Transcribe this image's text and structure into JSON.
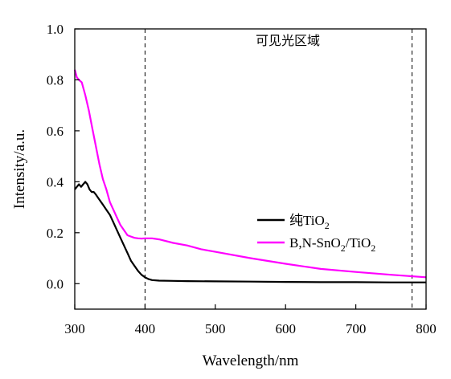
{
  "chart_data": {
    "type": "line",
    "xlabel": "Wavelength/nm",
    "ylabel": "Intensity/a.u.",
    "xlim": [
      300,
      800
    ],
    "ylim": [
      -0.1,
      1.0
    ],
    "xticks": [
      "300",
      "400",
      "500",
      "600",
      "700",
      "800"
    ],
    "yticks": [
      "0.0",
      "0.2",
      "0.4",
      "0.6",
      "0.8",
      "1.0"
    ],
    "annotation": "可见光区域",
    "vlines": [
      400,
      780
    ],
    "legend_position": "center-right",
    "series": [
      {
        "name": "纯TiO2",
        "label_parts": [
          "纯TiO",
          "2"
        ],
        "color": "#000000",
        "x": [
          300,
          303,
          306,
          309,
          312,
          315,
          318,
          321,
          324,
          327,
          330,
          335,
          340,
          345,
          350,
          355,
          360,
          365,
          370,
          375,
          380,
          385,
          390,
          395,
          400,
          405,
          410,
          420,
          440,
          460,
          500,
          550,
          600,
          650,
          700,
          750,
          800
        ],
        "y": [
          0.37,
          0.38,
          0.39,
          0.38,
          0.39,
          0.4,
          0.39,
          0.37,
          0.36,
          0.36,
          0.35,
          0.33,
          0.31,
          0.29,
          0.27,
          0.24,
          0.21,
          0.18,
          0.15,
          0.12,
          0.09,
          0.07,
          0.05,
          0.035,
          0.025,
          0.018,
          0.014,
          0.012,
          0.011,
          0.01,
          0.009,
          0.008,
          0.007,
          0.006,
          0.006,
          0.005,
          0.005
        ]
      },
      {
        "name": "B,N-SnO2/TiO2",
        "label_parts": [
          "B,N-SnO",
          "2",
          "/TiO",
          "2"
        ],
        "color": "#ff00ff",
        "x": [
          300,
          303,
          306,
          310,
          315,
          320,
          325,
          330,
          335,
          340,
          345,
          350,
          355,
          360,
          365,
          370,
          375,
          380,
          385,
          390,
          395,
          400,
          410,
          420,
          440,
          460,
          480,
          500,
          550,
          600,
          650,
          700,
          750,
          800
        ],
        "y": [
          0.84,
          0.81,
          0.8,
          0.79,
          0.74,
          0.68,
          0.61,
          0.54,
          0.47,
          0.41,
          0.37,
          0.32,
          0.29,
          0.26,
          0.23,
          0.21,
          0.19,
          0.185,
          0.18,
          0.178,
          0.177,
          0.178,
          0.178,
          0.174,
          0.16,
          0.15,
          0.135,
          0.125,
          0.1,
          0.078,
          0.058,
          0.046,
          0.035,
          0.025
        ]
      }
    ]
  }
}
